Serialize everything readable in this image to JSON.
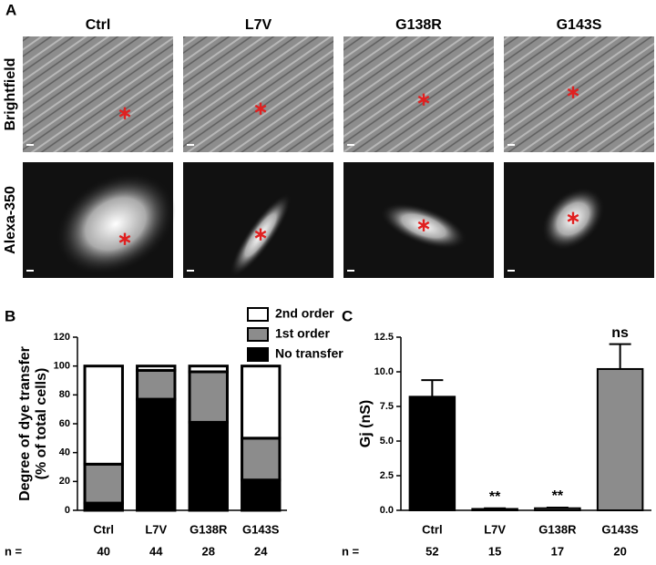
{
  "panel_a": {
    "label": "A",
    "columns": [
      "Ctrl",
      "L7V",
      "G138R",
      "G143S"
    ],
    "rows": [
      "Brightfield",
      "Alexa-350"
    ]
  },
  "chart_data": [
    {
      "type": "stacked_bar",
      "panel_label": "B",
      "ylabel": [
        "Degree of dye transfer",
        "(% of total cells)"
      ],
      "categories": [
        "Ctrl",
        "L7V",
        "G138R",
        "G143S"
      ],
      "series": [
        {
          "name": "No transfer",
          "color": "#000000",
          "values": [
            5,
            77,
            61,
            21
          ]
        },
        {
          "name": "1st order",
          "color": "#8c8c8c",
          "values": [
            27,
            20,
            35,
            29
          ]
        },
        {
          "name": "2nd order",
          "color": "#ffffff",
          "values": [
            68,
            3,
            4,
            50
          ]
        }
      ],
      "ylim": [
        0,
        120
      ],
      "yticks": [
        0,
        20,
        40,
        60,
        80,
        100,
        120
      ],
      "n_label": "n =",
      "n": [
        40,
        44,
        28,
        24
      ]
    },
    {
      "type": "bar_error",
      "panel_label": "C",
      "ylabel": [
        "Gj (nS)"
      ],
      "categories": [
        "Ctrl",
        "L7V",
        "G138R",
        "G143S"
      ],
      "values": [
        8.2,
        0.1,
        0.15,
        10.2
      ],
      "errors": [
        1.2,
        0.05,
        0.05,
        1.8
      ],
      "colors": [
        "#000000",
        "#8c8c8c",
        "#8c8c8c",
        "#8c8c8c"
      ],
      "significance": [
        null,
        "**",
        "**",
        "ns"
      ],
      "ylim": [
        0,
        12.5
      ],
      "yticks": [
        {
          "value": 0,
          "label": "0.0"
        },
        2.5,
        {
          "value": 5,
          "label": "5.0"
        },
        7.5,
        {
          "value": 10,
          "label": "10.0"
        },
        12.5
      ],
      "n_label": "n =",
      "n": [
        52,
        15,
        17,
        20
      ]
    }
  ]
}
